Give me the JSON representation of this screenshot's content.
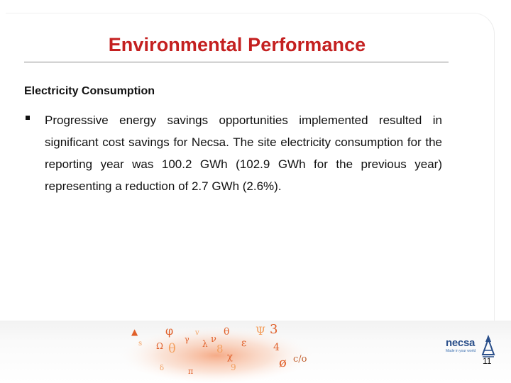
{
  "slide": {
    "title": "Environmental Performance",
    "subheading": "Electricity Consumption",
    "bullet_text": "Progressive energy savings opportunities implemented resulted in significant cost savings for Necsa. The site electricity consumption for the reporting year was 100.2 GWh (102.9 GWh for the previous year) representing a reduction of 2.7 GWh (2.6%).",
    "page_number": "11"
  },
  "logo": {
    "name": "necsa",
    "tagline": "Made in your world"
  },
  "colors": {
    "title": "#c42020",
    "logo": "#2a4f8a",
    "decor_orange": "#f28a3c"
  }
}
